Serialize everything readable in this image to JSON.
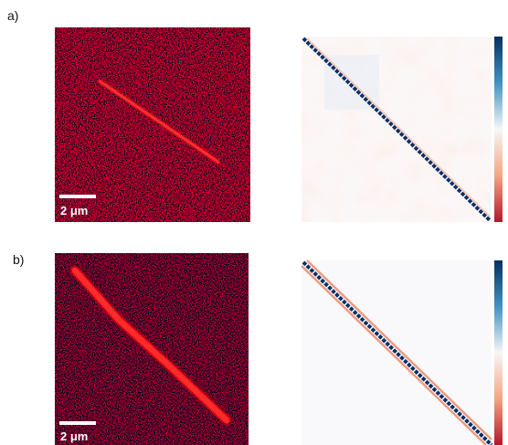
{
  "panels": [
    {
      "label": "a)",
      "scale_bar": "2 μm"
    },
    {
      "label": "b)",
      "scale_bar": "2 μm"
    }
  ]
}
